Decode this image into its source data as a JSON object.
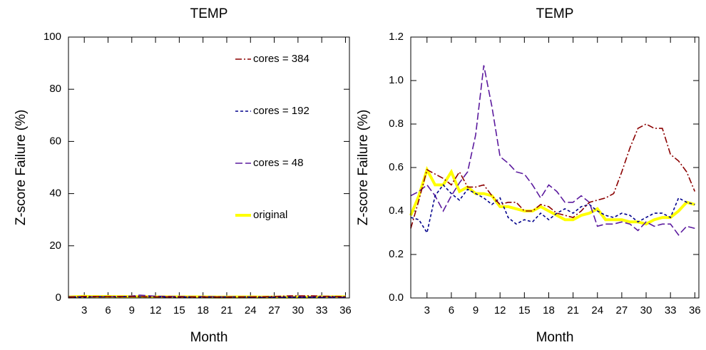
{
  "chart_data": [
    {
      "type": "line",
      "title": "TEMP",
      "xlabel": "Month",
      "ylabel": "Z-score Failure (%)",
      "x": [
        1,
        2,
        3,
        4,
        5,
        6,
        7,
        8,
        9,
        10,
        11,
        12,
        13,
        14,
        15,
        16,
        17,
        18,
        19,
        20,
        21,
        22,
        23,
        24,
        25,
        26,
        27,
        28,
        29,
        30,
        31,
        32,
        33,
        34,
        35,
        36
      ],
      "xlim": [
        1,
        36.5
      ],
      "xticks": [
        3,
        6,
        9,
        12,
        15,
        18,
        21,
        24,
        27,
        30,
        33,
        36
      ],
      "ylim": [
        0,
        100
      ],
      "yticks": [
        0,
        20,
        40,
        60,
        80,
        100
      ],
      "legend": true,
      "legend_position": "upper right",
      "series": [
        {
          "name": "cores = 384",
          "color": "#8b0000",
          "dash": "dashdot",
          "values": [
            0.32,
            0.45,
            0.59,
            0.57,
            0.55,
            0.52,
            0.58,
            0.51,
            0.51,
            0.52,
            0.47,
            0.43,
            0.44,
            0.44,
            0.4,
            0.4,
            0.43,
            0.42,
            0.39,
            0.38,
            0.37,
            0.4,
            0.44,
            0.45,
            0.46,
            0.48,
            0.58,
            0.69,
            0.78,
            0.8,
            0.78,
            0.78,
            0.66,
            0.63,
            0.58,
            0.49
          ]
        },
        {
          "name": "cores = 192",
          "color": "#00008b",
          "dash": "short",
          "values": [
            0.37,
            0.36,
            0.3,
            0.47,
            0.52,
            0.48,
            0.45,
            0.5,
            0.48,
            0.46,
            0.43,
            0.46,
            0.37,
            0.34,
            0.36,
            0.35,
            0.39,
            0.36,
            0.39,
            0.41,
            0.39,
            0.42,
            0.43,
            0.4,
            0.38,
            0.37,
            0.39,
            0.38,
            0.35,
            0.37,
            0.39,
            0.39,
            0.37,
            0.46,
            0.44,
            0.43
          ]
        },
        {
          "name": "cores = 48",
          "color": "#5b1a9e",
          "dash": "long",
          "values": [
            0.47,
            0.49,
            0.52,
            0.47,
            0.4,
            0.47,
            0.53,
            0.58,
            0.75,
            1.07,
            0.88,
            0.65,
            0.62,
            0.58,
            0.57,
            0.52,
            0.46,
            0.52,
            0.49,
            0.44,
            0.44,
            0.47,
            0.44,
            0.33,
            0.34,
            0.34,
            0.35,
            0.34,
            0.31,
            0.35,
            0.33,
            0.34,
            0.34,
            0.29,
            0.33,
            0.32
          ]
        },
        {
          "name": "original",
          "color": "#ffff00",
          "dash": "solid",
          "values": [
            0.38,
            0.47,
            0.59,
            0.52,
            0.52,
            0.58,
            0.49,
            0.51,
            0.48,
            0.48,
            0.47,
            0.42,
            0.42,
            0.41,
            0.4,
            0.4,
            0.42,
            0.4,
            0.38,
            0.36,
            0.36,
            0.38,
            0.39,
            0.41,
            0.36,
            0.36,
            0.36,
            0.35,
            0.35,
            0.34,
            0.36,
            0.37,
            0.37,
            0.4,
            0.44,
            0.43
          ]
        }
      ]
    },
    {
      "type": "line",
      "title": "TEMP",
      "xlabel": "Month",
      "ylabel": "Z-score Failure (%)",
      "x": [
        1,
        2,
        3,
        4,
        5,
        6,
        7,
        8,
        9,
        10,
        11,
        12,
        13,
        14,
        15,
        16,
        17,
        18,
        19,
        20,
        21,
        22,
        23,
        24,
        25,
        26,
        27,
        28,
        29,
        30,
        31,
        32,
        33,
        34,
        35,
        36
      ],
      "xlim": [
        1,
        36.5
      ],
      "xticks": [
        3,
        6,
        9,
        12,
        15,
        18,
        21,
        24,
        27,
        30,
        33,
        36
      ],
      "ylim": [
        0,
        1.2
      ],
      "yticks": [
        {
          "value": 0,
          "label": "0.0"
        },
        0.2,
        0.4,
        0.6,
        0.8,
        {
          "value": 1,
          "label": "1.0"
        },
        1.2
      ],
      "legend": false,
      "series": [
        {
          "name": "cores = 384",
          "color": "#8b0000",
          "dash": "dashdot",
          "values": [
            0.32,
            0.45,
            0.59,
            0.57,
            0.55,
            0.52,
            0.58,
            0.51,
            0.51,
            0.52,
            0.47,
            0.43,
            0.44,
            0.44,
            0.4,
            0.4,
            0.43,
            0.42,
            0.39,
            0.38,
            0.37,
            0.4,
            0.44,
            0.45,
            0.46,
            0.48,
            0.58,
            0.69,
            0.78,
            0.8,
            0.78,
            0.78,
            0.66,
            0.63,
            0.58,
            0.49
          ]
        },
        {
          "name": "cores = 192",
          "color": "#00008b",
          "dash": "short",
          "values": [
            0.37,
            0.36,
            0.3,
            0.47,
            0.52,
            0.48,
            0.45,
            0.5,
            0.48,
            0.46,
            0.43,
            0.46,
            0.37,
            0.34,
            0.36,
            0.35,
            0.39,
            0.36,
            0.39,
            0.41,
            0.39,
            0.42,
            0.43,
            0.4,
            0.38,
            0.37,
            0.39,
            0.38,
            0.35,
            0.37,
            0.39,
            0.39,
            0.37,
            0.46,
            0.44,
            0.43
          ]
        },
        {
          "name": "cores = 48",
          "color": "#5b1a9e",
          "dash": "long",
          "values": [
            0.47,
            0.49,
            0.52,
            0.47,
            0.4,
            0.47,
            0.53,
            0.58,
            0.75,
            1.07,
            0.88,
            0.65,
            0.62,
            0.58,
            0.57,
            0.52,
            0.46,
            0.52,
            0.49,
            0.44,
            0.44,
            0.47,
            0.44,
            0.33,
            0.34,
            0.34,
            0.35,
            0.34,
            0.31,
            0.35,
            0.33,
            0.34,
            0.34,
            0.29,
            0.33,
            0.32
          ]
        },
        {
          "name": "original",
          "color": "#ffff00",
          "dash": "solid",
          "values": [
            0.38,
            0.47,
            0.59,
            0.52,
            0.52,
            0.58,
            0.49,
            0.51,
            0.48,
            0.48,
            0.47,
            0.42,
            0.42,
            0.41,
            0.4,
            0.4,
            0.42,
            0.4,
            0.38,
            0.36,
            0.36,
            0.38,
            0.39,
            0.41,
            0.36,
            0.36,
            0.36,
            0.35,
            0.35,
            0.34,
            0.36,
            0.37,
            0.37,
            0.4,
            0.44,
            0.43
          ]
        }
      ]
    }
  ]
}
